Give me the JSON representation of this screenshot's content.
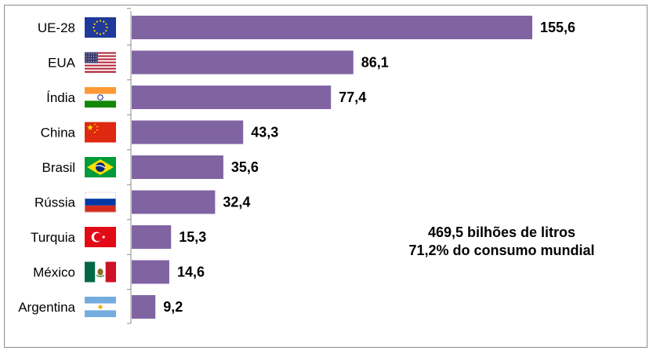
{
  "chart_data": {
    "type": "bar",
    "orientation": "horizontal",
    "title": "",
    "xlabel": "",
    "ylabel": "",
    "categories": [
      "UE-28",
      "EUA",
      "Índia",
      "China",
      "Brasil",
      "Rússia",
      "Turquia",
      "México",
      "Argentina"
    ],
    "values": [
      155.6,
      86.1,
      77.4,
      43.3,
      35.6,
      32.4,
      15.3,
      14.6,
      9.2
    ],
    "value_labels": [
      "155,6",
      "86,1",
      "77,4",
      "43,3",
      "35,6",
      "32,4",
      "15,3",
      "14,6",
      "9,2"
    ],
    "flags": [
      "eu-flag-icon",
      "usa-flag-icon",
      "india-flag-icon",
      "china-flag-icon",
      "brazil-flag-icon",
      "russia-flag-icon",
      "turkey-flag-icon",
      "mexico-flag-icon",
      "argentina-flag-icon"
    ],
    "xlim": [
      0,
      155.6
    ],
    "grid": false,
    "bar_color": "#8064a2",
    "annotation": {
      "line1": "469,5 bilhões de litros",
      "line2": "71,2% do consumo mundial"
    }
  }
}
